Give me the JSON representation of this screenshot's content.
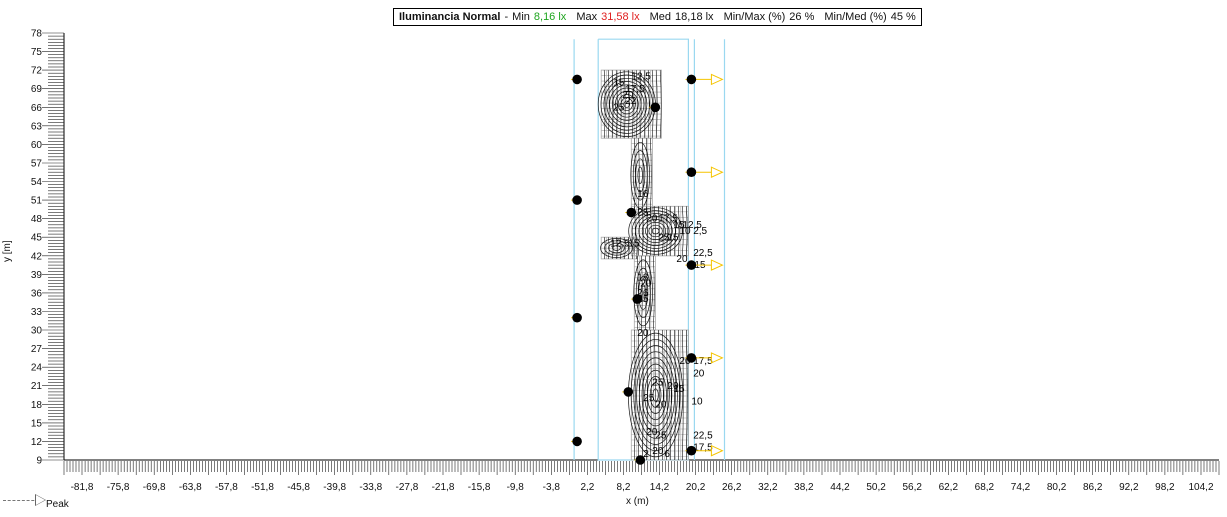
{
  "header": {
    "title": "Iluminancia Normal",
    "dash": "-",
    "min_label": "Min",
    "min_value": "8,16 lx",
    "max_label": "Max",
    "max_value": "31,58 lx",
    "med_label": "Med",
    "med_value": "18,18 lx",
    "minmax_label": "Min/Max (%)",
    "minmax_value": "26 %",
    "minmed_label": "Min/Med (%)",
    "minmed_value": "45 %"
  },
  "legend": {
    "peak_label": "Peak"
  },
  "chart_data": {
    "type": "contour",
    "xlabel": "x (m)",
    "ylabel": "y [m]",
    "xlim": [
      -84.8,
      107.2
    ],
    "ylim": [
      9,
      78
    ],
    "x_ticks": [
      "-81,8",
      "-75,8",
      "-69,8",
      "-63,8",
      "-57,8",
      "-51,8",
      "-45,8",
      "-39,8",
      "-33,8",
      "-27,8",
      "-21,8",
      "-15,8",
      "-9,8",
      "-3,8",
      "2,2",
      "8,2",
      "14,2",
      "20,2",
      "26,2",
      "32,2",
      "38,2",
      "44,2",
      "50,2",
      "56,2",
      "62,2",
      "68,2",
      "74,2",
      "80,2",
      "86,2",
      "92,2",
      "98,2",
      "104,2"
    ],
    "y_ticks": [
      "9",
      "12",
      "15",
      "18",
      "21",
      "24",
      "27",
      "30",
      "33",
      "36",
      "39",
      "42",
      "45",
      "48",
      "51",
      "54",
      "57",
      "60",
      "63",
      "66",
      "69",
      "72",
      "75",
      "78"
    ],
    "boundary_lines": [
      {
        "points": [
          [
            0,
            77
          ],
          [
            0,
            9
          ]
        ]
      },
      {
        "points": [
          [
            20,
            77
          ],
          [
            20,
            9
          ]
        ]
      },
      {
        "points": [
          [
            25,
            77
          ],
          [
            25,
            9
          ]
        ]
      },
      {
        "points": [
          [
            4,
            77
          ],
          [
            19,
            77
          ],
          [
            19,
            9
          ],
          [
            4,
            9
          ],
          [
            4,
            77
          ]
        ]
      }
    ],
    "grid_regions": [
      {
        "x": [
          4.5,
          14.5
        ],
        "y": [
          61,
          72
        ]
      },
      {
        "x": [
          9.5,
          13
        ],
        "y": [
          49,
          61
        ]
      },
      {
        "x": [
          9.5,
          19
        ],
        "y": [
          42,
          50
        ]
      },
      {
        "x": [
          4.5,
          10.5
        ],
        "y": [
          41.5,
          45
        ]
      },
      {
        "x": [
          10,
          13.5
        ],
        "y": [
          30,
          42
        ]
      },
      {
        "x": [
          9.5,
          19
        ],
        "y": [
          9,
          30
        ]
      }
    ],
    "luminaires": [
      {
        "x": 0.5,
        "y": 70.5,
        "arrow": false
      },
      {
        "x": 19.5,
        "y": 70.5,
        "arrow": true
      },
      {
        "x": 13.5,
        "y": 66,
        "arrow": false
      },
      {
        "x": 19.5,
        "y": 55.5,
        "arrow": true
      },
      {
        "x": 0.5,
        "y": 51,
        "arrow": false
      },
      {
        "x": 9.5,
        "y": 49,
        "arrow": false
      },
      {
        "x": 19.5,
        "y": 40.5,
        "arrow": true
      },
      {
        "x": 10.5,
        "y": 35,
        "arrow": false
      },
      {
        "x": 0.5,
        "y": 32,
        "arrow": false
      },
      {
        "x": 19.5,
        "y": 25.5,
        "arrow": true
      },
      {
        "x": 9,
        "y": 20,
        "arrow": false
      },
      {
        "x": 0.5,
        "y": 12,
        "arrow": false
      },
      {
        "x": 19.5,
        "y": 10.5,
        "arrow": true
      },
      {
        "x": 11,
        "y": 9,
        "arrow": false
      }
    ],
    "contour_labels": [
      {
        "text": "12,5",
        "x": 9.5,
        "y": 70.5
      },
      {
        "text": "15",
        "x": 6.5,
        "y": 69.5
      },
      {
        "text": "17,5",
        "x": 8.5,
        "y": 68.5
      },
      {
        "text": "20",
        "x": 8,
        "y": 67.5
      },
      {
        "text": "22",
        "x": 8.5,
        "y": 66.5
      },
      {
        "text": "25",
        "x": 6.5,
        "y": 65.5
      },
      {
        "text": "16",
        "x": 10.5,
        "y": 51.5
      },
      {
        "text": "25",
        "x": 10.5,
        "y": 48.5
      },
      {
        "text": "20",
        "x": 12,
        "y": 47.5
      },
      {
        "text": "17,5",
        "x": 14,
        "y": 47.5
      },
      {
        "text": "15",
        "x": 16.5,
        "y": 46.5
      },
      {
        "text": "12,5",
        "x": 18,
        "y": 46.5
      },
      {
        "text": "10",
        "x": 17.5,
        "y": 45.5
      },
      {
        "text": "2,5",
        "x": 19.8,
        "y": 45.5
      },
      {
        "text": "12,5",
        "x": 6,
        "y": 43.5
      },
      {
        "text": "15",
        "x": 9,
        "y": 43.5
      },
      {
        "text": "25",
        "x": 14,
        "y": 44.5
      },
      {
        "text": "15",
        "x": 15.5,
        "y": 44.5
      },
      {
        "text": "22,5",
        "x": 19.8,
        "y": 42
      },
      {
        "text": "20",
        "x": 17,
        "y": 41
      },
      {
        "text": "15",
        "x": 20,
        "y": 40
      },
      {
        "text": "18",
        "x": 10.5,
        "y": 38
      },
      {
        "text": "20",
        "x": 11,
        "y": 37
      },
      {
        "text": "26",
        "x": 10.5,
        "y": 35.5
      },
      {
        "text": "25",
        "x": 10.5,
        "y": 34.5
      },
      {
        "text": "20",
        "x": 10.5,
        "y": 29
      },
      {
        "text": "17,5",
        "x": 19.8,
        "y": 24.5
      },
      {
        "text": "20",
        "x": 17.5,
        "y": 24.5
      },
      {
        "text": "20",
        "x": 19.8,
        "y": 22.5
      },
      {
        "text": "25",
        "x": 13,
        "y": 21
      },
      {
        "text": "20",
        "x": 15.5,
        "y": 20.5
      },
      {
        "text": "15",
        "x": 16.5,
        "y": 20
      },
      {
        "text": "10",
        "x": 19.5,
        "y": 18
      },
      {
        "text": "20",
        "x": 13.5,
        "y": 17.5
      },
      {
        "text": "25",
        "x": 11.5,
        "y": 18.5
      },
      {
        "text": "20",
        "x": 12,
        "y": 13
      },
      {
        "text": "25",
        "x": 13.5,
        "y": 12.5
      },
      {
        "text": "22,5",
        "x": 19.8,
        "y": 12.5
      },
      {
        "text": "17,5",
        "x": 19.8,
        "y": 10.5
      },
      {
        "text": "20",
        "x": 13,
        "y": 10
      },
      {
        "text": "2",
        "x": 11.5,
        "y": 9.5
      },
      {
        "text": "6",
        "x": 15,
        "y": 9.5
      }
    ]
  },
  "colors": {
    "min": "#1fa51f",
    "max": "#e02020",
    "boundary": "#9ad8f0",
    "grid": "#a8a8a8",
    "contour": "#111111",
    "arrow": "#f5c400",
    "luminaire": "#000000"
  }
}
